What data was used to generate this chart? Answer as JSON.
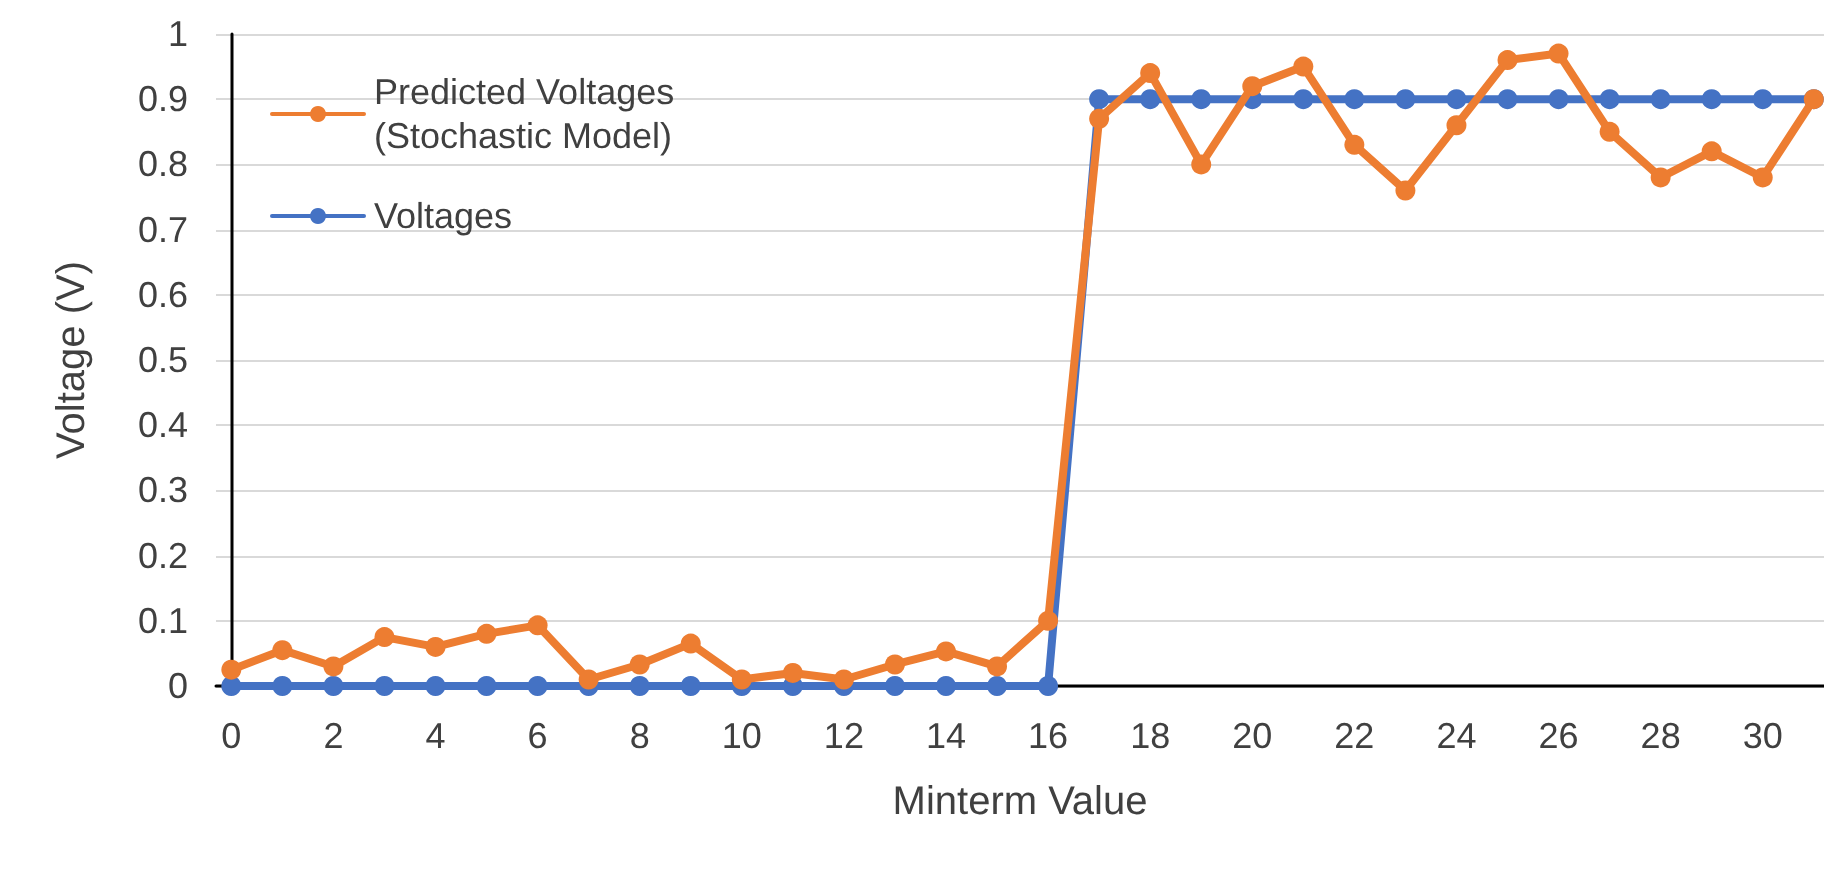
{
  "chart_data": {
    "type": "line",
    "xlabel": "Minterm Value",
    "ylabel": "Voltage (V)",
    "x": [
      0,
      1,
      2,
      3,
      4,
      5,
      6,
      7,
      8,
      9,
      10,
      11,
      12,
      13,
      14,
      15,
      16,
      17,
      18,
      19,
      20,
      21,
      22,
      23,
      24,
      25,
      26,
      27,
      28,
      29,
      30,
      31
    ],
    "series": [
      {
        "name": "Predicted Voltages\n(Stochastic Model)",
        "color": "#ed7d31",
        "values": [
          0.025,
          0.055,
          0.03,
          0.075,
          0.06,
          0.08,
          0.093,
          0.01,
          0.033,
          0.065,
          0.01,
          0.02,
          0.01,
          0.033,
          0.053,
          0.03,
          0.1,
          0.87,
          0.94,
          0.8,
          0.92,
          0.95,
          0.83,
          0.76,
          0.86,
          0.96,
          0.97,
          0.85,
          0.78,
          0.82,
          0.78,
          0.9
        ]
      },
      {
        "name": "Voltages",
        "color": "#4472c4",
        "values": [
          0,
          0,
          0,
          0,
          0,
          0,
          0,
          0,
          0,
          0,
          0,
          0,
          0,
          0,
          0,
          0,
          0,
          0.9,
          0.9,
          0.9,
          0.9,
          0.9,
          0.9,
          0.9,
          0.9,
          0.9,
          0.9,
          0.9,
          0.9,
          0.9,
          0.9,
          0.9
        ]
      }
    ],
    "xlim": [
      -0.3,
      31.2
    ],
    "xticks": [
      0,
      2,
      4,
      6,
      8,
      10,
      12,
      14,
      16,
      18,
      20,
      22,
      24,
      26,
      28,
      30
    ],
    "ylim": [
      0,
      1
    ],
    "yticks": [
      0,
      0.1,
      0.2,
      0.3,
      0.4,
      0.5,
      0.6,
      0.7,
      0.8,
      0.9,
      1
    ],
    "grid": "y",
    "legend": "top left",
    "marker": "circle",
    "line_style": "solid"
  }
}
